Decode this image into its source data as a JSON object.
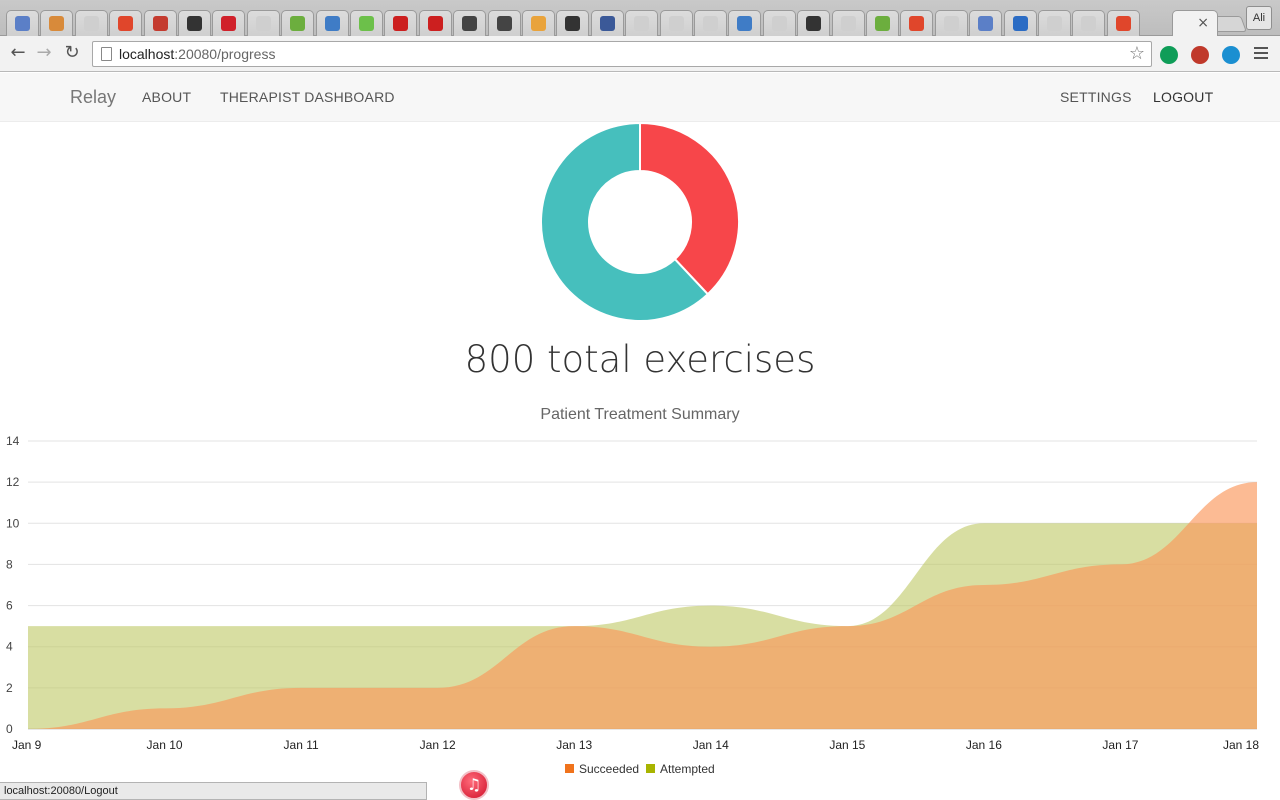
{
  "browser": {
    "tab_favicon_colors": [
      "#5b7fc7",
      "#d88a3a",
      "#cfcfcf",
      "#e0462b",
      "#c43b2f",
      "#333333",
      "#d0202a",
      "#cfcfcf",
      "#6cae3e",
      "#3f7cc6",
      "#6cc04a",
      "#cc1f1f",
      "#cc1f1f",
      "#444444",
      "#444444",
      "#e9a33b",
      "#333333",
      "#3b5998",
      "#cfcfcf",
      "#cfcfcf",
      "#cfcfcf",
      "#3f7cc6",
      "#cfcfcf",
      "#333333",
      "#cfcfcf",
      "#6cae3e",
      "#e0462b",
      "#cfcfcf",
      "#5b7fc7",
      "#2b6cc4",
      "#cfcfcf",
      "#cfcfcf",
      "#e0462b"
    ],
    "active_tab_close": "×",
    "profile_label": "Ali",
    "back_label": "←",
    "forward_label": "→",
    "reload_label": "↻",
    "url_host": "localhost",
    "url_path": ":20080/progress",
    "star_label": "☆",
    "extension_colors": [
      "#0f9d58",
      "#c0392b",
      "#1b8fd1"
    ]
  },
  "app": {
    "brand": "Relay",
    "nav_left": [
      "ABOUT",
      "THERAPIST DASHBOARD"
    ],
    "nav_right": [
      "SETTINGS",
      "LOGOUT"
    ],
    "total_text": "800 total exercises"
  },
  "donut": {
    "slices": [
      {
        "name": "Succeeded",
        "value": 0.38,
        "color": "#f7464a"
      },
      {
        "name": "Attempted",
        "value": 0.62,
        "color": "#46bfbd"
      }
    ]
  },
  "chart_data": {
    "type": "area",
    "title": "Patient Treatment Summary",
    "categories": [
      "Jan 9",
      "Jan 10",
      "Jan 11",
      "Jan 12",
      "Jan 13",
      "Jan 14",
      "Jan 15",
      "Jan 16",
      "Jan 17",
      "Jan 18"
    ],
    "ylim": [
      0,
      14
    ],
    "yticks": [
      0,
      2,
      4,
      6,
      8,
      10,
      12,
      14
    ],
    "grid": true,
    "legend_position": "bottom",
    "series": [
      {
        "name": "Succeeded",
        "values": [
          0,
          1,
          2,
          2,
          5,
          4,
          5,
          7,
          8,
          12
        ],
        "color": "#f0731c",
        "fill": "rgba(250,150,90,0.65)"
      },
      {
        "name": "Attempted",
        "values": [
          5,
          5,
          5,
          5,
          5,
          6,
          5,
          10,
          10,
          10
        ],
        "color": "#a8b400",
        "fill": "rgba(190,200,100,0.6)"
      }
    ]
  },
  "status": {
    "link_preview": "localhost:20080/Logout",
    "dock_glyph": "♫"
  }
}
